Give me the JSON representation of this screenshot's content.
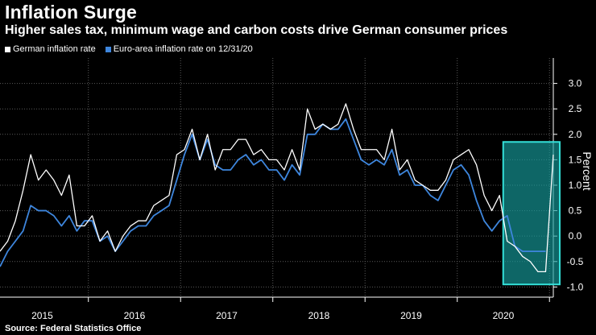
{
  "title": "Inflation Surge",
  "subtitle": "Higher sales tax, minimum wage and carbon costs drive German consumer prices",
  "source": "Source: Federal Statistics Office",
  "colors": {
    "background": "#000000",
    "german": "#ffffff",
    "euro": "#3e86dd",
    "highlight_fill": "#169c9c",
    "highlight_stroke": "#33e0d8",
    "grid": "#5a5a5a",
    "axis": "#ffffff"
  },
  "chart_data": {
    "type": "line",
    "title": "Inflation Surge",
    "subtitle": "Higher sales tax, minimum wage and carbon costs drive German consumer prices",
    "xlabel": "",
    "ylabel": "Percent",
    "ylim": [
      -1.2,
      3.5
    ],
    "yticks": [
      -1.0,
      -0.5,
      0.0,
      0.5,
      1.0,
      1.5,
      2.0,
      2.5,
      3.0
    ],
    "ytick_labels": [
      "-1.0",
      "-0.5",
      "0.0",
      "0.5",
      "1.0",
      "1.5",
      "2.0",
      "2.5",
      "3.0"
    ],
    "year_labels": [
      "2015",
      "2016",
      "2017",
      "2018",
      "2019",
      "2020"
    ],
    "start": "2015-01",
    "months": 73,
    "grid": true,
    "legend_position": "top-left",
    "series": [
      {
        "name": "German inflation rate",
        "values": [
          -0.3,
          -0.1,
          0.3,
          0.9,
          1.6,
          1.1,
          1.3,
          1.1,
          0.8,
          1.2,
          0.2,
          0.2,
          0.4,
          -0.1,
          0.1,
          -0.3,
          0.0,
          0.2,
          0.3,
          0.3,
          0.6,
          0.7,
          0.8,
          1.6,
          1.7,
          2.1,
          1.5,
          2.0,
          1.3,
          1.7,
          1.7,
          1.9,
          1.9,
          1.6,
          1.7,
          1.5,
          1.5,
          1.3,
          1.7,
          1.3,
          2.5,
          2.1,
          2.2,
          2.1,
          2.2,
          2.6,
          2.1,
          1.7,
          1.7,
          1.7,
          1.5,
          2.1,
          1.3,
          1.5,
          1.1,
          1.0,
          0.9,
          0.9,
          1.1,
          1.5,
          1.6,
          1.7,
          1.4,
          0.8,
          0.5,
          0.8,
          -0.1,
          -0.2,
          -0.4,
          -0.5,
          -0.7,
          -0.7,
          1.6
        ]
      },
      {
        "name": "Euro-area inflation rate on 12/31/20",
        "values": [
          -0.6,
          -0.3,
          -0.1,
          0.1,
          0.6,
          0.5,
          0.5,
          0.4,
          0.2,
          0.4,
          0.1,
          0.3,
          0.3,
          -0.1,
          0.0,
          -0.3,
          -0.1,
          0.1,
          0.2,
          0.2,
          0.4,
          0.5,
          0.6,
          1.1,
          1.6,
          2.0,
          1.5,
          1.9,
          1.4,
          1.3,
          1.3,
          1.5,
          1.6,
          1.4,
          1.5,
          1.3,
          1.3,
          1.1,
          1.4,
          1.2,
          2.0,
          2.0,
          2.2,
          2.1,
          2.1,
          2.3,
          1.9,
          1.5,
          1.4,
          1.5,
          1.4,
          1.7,
          1.2,
          1.3,
          1.0,
          1.0,
          0.8,
          0.7,
          1.0,
          1.3,
          1.4,
          1.2,
          0.7,
          0.3,
          0.1,
          0.3,
          0.4,
          -0.2,
          -0.3,
          -0.3,
          -0.3,
          -0.3
        ]
      }
    ],
    "highlight": {
      "start_index": 66,
      "end_index": 72,
      "ymin": -0.95,
      "ymax": 1.85
    }
  }
}
